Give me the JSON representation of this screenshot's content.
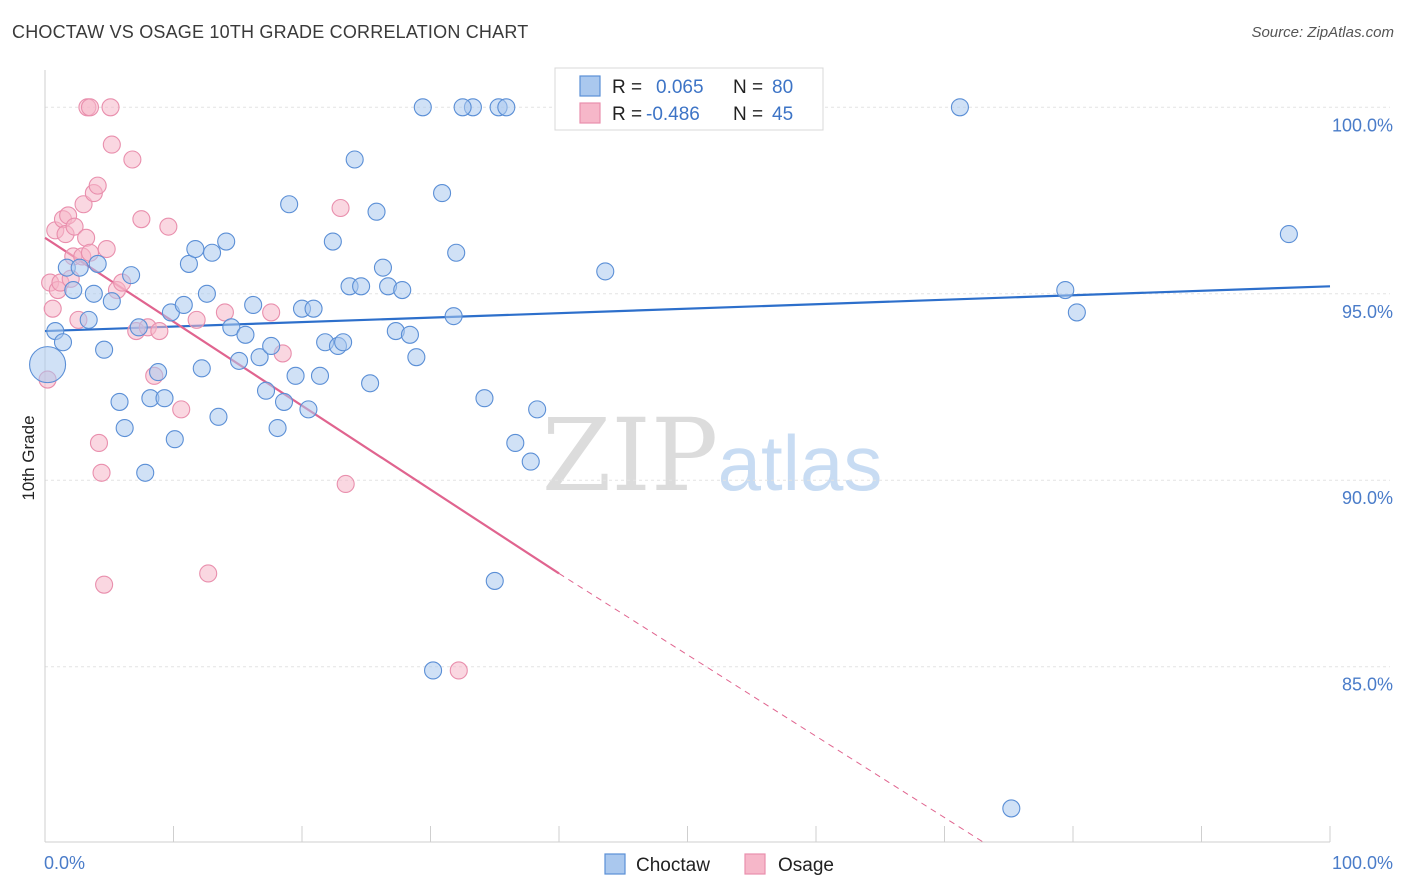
{
  "title": "CHOCTAW VS OSAGE 10TH GRADE CORRELATION CHART",
  "source": "Source: ZipAtlas.com",
  "watermark": {
    "zip": "ZIP",
    "atlas": "atlas"
  },
  "legend": {
    "rows": [
      {
        "r_label": "R =",
        "r_value": "0.065",
        "n_label": "N =",
        "n_value": "80",
        "color": "#aac8ee"
      },
      {
        "r_label": "R =",
        "r_value": "-0.486",
        "n_label": "N =",
        "n_value": "45",
        "color": "#f6b7c9"
      }
    ]
  },
  "bottom_legend": [
    {
      "name": "Choctaw",
      "color": "#aac8ee"
    },
    {
      "name": "Osage",
      "color": "#f6b7c9"
    }
  ],
  "chart_data": {
    "type": "scatter",
    "title": "CHOCTAW VS OSAGE 10TH GRADE CORRELATION CHART",
    "xlabel": "",
    "ylabel": "10th Grade",
    "xlim": [
      0,
      100
    ],
    "ylim": [
      80.3,
      101.0
    ],
    "x_tick_labels": [
      "0.0%",
      "100.0%"
    ],
    "y_ticks": [
      85,
      90,
      95,
      100
    ],
    "y_tick_labels": [
      "85.0%",
      "90.0%",
      "95.0%",
      "100.0%"
    ],
    "grid": "horizontal dashed",
    "legend_position": "top-center",
    "colors": {
      "choctaw_stroke": "#5b8fd6",
      "choctaw_fill": "#aac8ee",
      "choctaw_line": "#2d6fcb",
      "osage_stroke": "#e98fad",
      "osage_fill": "#f6b7c9",
      "osage_line": "#e0648f"
    },
    "series": [
      {
        "name": "Choctaw",
        "points": [
          [
            0.2,
            93.1
          ],
          [
            0.8,
            94.0
          ],
          [
            1.4,
            93.7
          ],
          [
            1.7,
            95.7
          ],
          [
            2.2,
            95.1
          ],
          [
            2.7,
            95.7
          ],
          [
            3.4,
            94.3
          ],
          [
            3.8,
            95.0
          ],
          [
            4.1,
            95.8
          ],
          [
            4.6,
            93.5
          ],
          [
            5.2,
            94.8
          ],
          [
            5.8,
            92.1
          ],
          [
            6.2,
            91.4
          ],
          [
            6.7,
            95.5
          ],
          [
            7.3,
            94.1
          ],
          [
            7.8,
            90.2
          ],
          [
            8.2,
            92.2
          ],
          [
            8.8,
            92.9
          ],
          [
            9.3,
            92.2
          ],
          [
            9.8,
            94.5
          ],
          [
            10.1,
            91.1
          ],
          [
            10.8,
            94.7
          ],
          [
            11.2,
            95.8
          ],
          [
            11.7,
            96.2
          ],
          [
            12.2,
            93.0
          ],
          [
            12.6,
            95.0
          ],
          [
            13.0,
            96.1
          ],
          [
            13.5,
            91.7
          ],
          [
            14.1,
            96.4
          ],
          [
            14.5,
            94.1
          ],
          [
            15.1,
            93.2
          ],
          [
            15.6,
            93.9
          ],
          [
            16.2,
            94.7
          ],
          [
            16.7,
            93.3
          ],
          [
            17.2,
            92.4
          ],
          [
            17.6,
            93.6
          ],
          [
            18.1,
            91.4
          ],
          [
            18.6,
            92.1
          ],
          [
            19.0,
            97.4
          ],
          [
            19.5,
            92.8
          ],
          [
            20.0,
            94.6
          ],
          [
            20.5,
            91.9
          ],
          [
            20.9,
            94.6
          ],
          [
            21.4,
            92.8
          ],
          [
            21.8,
            93.7
          ],
          [
            22.4,
            96.4
          ],
          [
            22.8,
            93.6
          ],
          [
            23.2,
            93.7
          ],
          [
            23.7,
            95.2
          ],
          [
            24.1,
            98.6
          ],
          [
            24.6,
            95.2
          ],
          [
            25.3,
            92.6
          ],
          [
            25.8,
            97.2
          ],
          [
            26.3,
            95.7
          ],
          [
            26.7,
            95.2
          ],
          [
            27.3,
            94.0
          ],
          [
            27.8,
            95.1
          ],
          [
            28.4,
            93.9
          ],
          [
            28.9,
            93.3
          ],
          [
            29.4,
            100.0
          ],
          [
            30.2,
            84.9
          ],
          [
            30.9,
            97.7
          ],
          [
            31.8,
            94.4
          ],
          [
            32.0,
            96.1
          ],
          [
            33.3,
            100.0
          ],
          [
            34.2,
            92.2
          ],
          [
            35.0,
            87.3
          ],
          [
            35.3,
            100.0
          ],
          [
            35.9,
            100.0
          ],
          [
            36.6,
            91.0
          ],
          [
            37.8,
            90.5
          ],
          [
            38.3,
            91.9
          ],
          [
            45.2,
            100.0
          ],
          [
            43.6,
            95.6
          ],
          [
            71.2,
            100.0
          ],
          [
            75.2,
            81.2
          ],
          [
            79.4,
            95.1
          ],
          [
            80.3,
            94.5
          ],
          [
            96.8,
            96.6
          ],
          [
            32.5,
            100.0
          ]
        ]
      },
      {
        "name": "Osage",
        "points": [
          [
            0.2,
            92.7
          ],
          [
            0.4,
            95.3
          ],
          [
            0.6,
            94.6
          ],
          [
            0.8,
            96.7
          ],
          [
            1.0,
            95.1
          ],
          [
            1.2,
            95.3
          ],
          [
            1.4,
            97.0
          ],
          [
            1.6,
            96.6
          ],
          [
            1.8,
            97.1
          ],
          [
            2.0,
            95.4
          ],
          [
            2.2,
            96.0
          ],
          [
            2.3,
            96.8
          ],
          [
            2.6,
            94.3
          ],
          [
            2.9,
            96.0
          ],
          [
            3.0,
            97.4
          ],
          [
            3.2,
            96.5
          ],
          [
            3.5,
            96.1
          ],
          [
            3.8,
            97.7
          ],
          [
            4.1,
            97.9
          ],
          [
            4.2,
            91.0
          ],
          [
            4.4,
            90.2
          ],
          [
            4.6,
            87.2
          ],
          [
            4.8,
            96.2
          ],
          [
            5.1,
            100.0
          ],
          [
            5.6,
            95.1
          ],
          [
            6.0,
            95.3
          ],
          [
            6.8,
            98.6
          ],
          [
            7.1,
            94.0
          ],
          [
            7.5,
            97.0
          ],
          [
            8.0,
            94.1
          ],
          [
            8.5,
            92.8
          ],
          [
            8.9,
            94.0
          ],
          [
            9.6,
            96.8
          ],
          [
            10.6,
            91.9
          ],
          [
            11.8,
            94.3
          ],
          [
            12.7,
            87.5
          ],
          [
            14.0,
            94.5
          ],
          [
            17.6,
            94.5
          ],
          [
            18.5,
            93.4
          ],
          [
            23.0,
            97.3
          ],
          [
            23.4,
            89.9
          ],
          [
            32.2,
            84.9
          ],
          [
            3.3,
            100.0
          ],
          [
            3.5,
            100.0
          ],
          [
            5.2,
            99.0
          ]
        ]
      }
    ],
    "trend_lines": [
      {
        "name": "Choctaw",
        "x": [
          0,
          100
        ],
        "y": [
          94.0,
          95.2
        ],
        "style": "solid"
      },
      {
        "name": "Osage",
        "x": [
          0,
          40.0
        ],
        "y": [
          96.5,
          87.5
        ],
        "style": "solid"
      },
      {
        "name": "Osage",
        "x": [
          40.0,
          73.0
        ],
        "y": [
          87.5,
          80.3
        ],
        "style": "dashed"
      }
    ]
  }
}
